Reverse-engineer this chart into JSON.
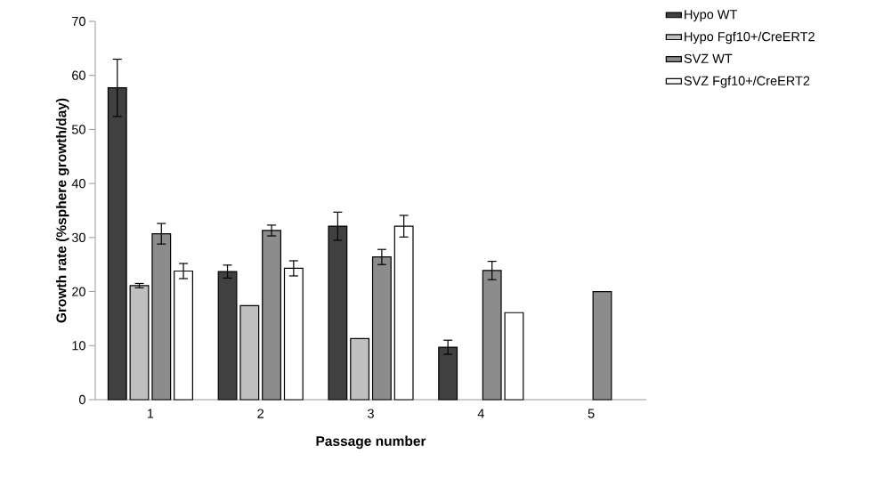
{
  "chart_data": {
    "type": "bar",
    "xlabel": "Passage number",
    "ylabel": "Growth rate (%sphere growth/day)",
    "categories": [
      "1",
      "2",
      "3",
      "4",
      "5"
    ],
    "series": [
      {
        "name": "Hypo WT",
        "color": "#404040",
        "values": [
          57.7,
          23.7,
          32.1,
          9.7,
          null
        ],
        "errors": [
          5.3,
          1.2,
          2.6,
          1.3,
          null
        ]
      },
      {
        "name": "Hypo Fgf10+/CreERT2",
        "color": "#c0c0c0",
        "values": [
          21.1,
          17.4,
          11.3,
          null,
          null
        ],
        "errors": [
          0.4,
          null,
          null,
          null,
          null
        ]
      },
      {
        "name": "SVZ WT",
        "color": "#8c8c8c",
        "values": [
          30.7,
          31.3,
          26.4,
          23.9,
          20.0
        ],
        "errors": [
          1.9,
          1.0,
          1.4,
          1.7,
          null
        ]
      },
      {
        "name": "SVZ Fgf10+/CreERT2",
        "color": "#ffffff",
        "values": [
          23.8,
          24.3,
          32.1,
          16.1,
          null
        ],
        "errors": [
          1.4,
          1.4,
          2.0,
          null,
          null
        ]
      }
    ],
    "ylim": [
      0,
      70
    ],
    "yticks": [
      0,
      10,
      20,
      30,
      40,
      50,
      60,
      70
    ],
    "grid": false,
    "legend": "top right"
  }
}
